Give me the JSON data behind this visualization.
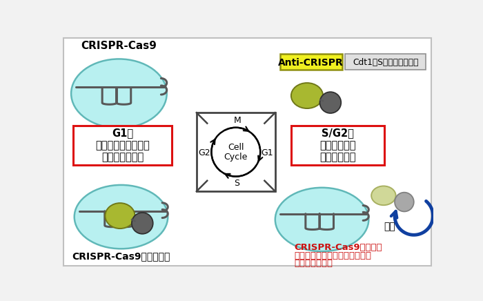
{
  "bg_color": "#f2f2f2",
  "white": "#ffffff",
  "cyan_fill": "#b8f0f0",
  "cyan_edge": "#60b8b8",
  "rna_gray": "#585858",
  "olive_fill": "#a8b830",
  "olive_edge": "#707818",
  "olive_faded_fill": "#d0d898",
  "olive_faded_edge": "#a8b060",
  "cas9_gray_fill": "#606060",
  "cas9_gray_edge": "#303030",
  "cas9_faded_fill": "#a8a8a8",
  "cas9_faded_edge": "#808080",
  "red_border": "#dd1010",
  "red_text": "#cc1010",
  "anti_yellow": "#f0f020",
  "anti_yellow_edge": "#909010",
  "cdt1_bg": "#e0e0e0",
  "cdt1_edge": "#909090",
  "blue_arrow": "#1040a0",
  "black": "#111111",
  "title_tl": "CRISPR-Cas9",
  "label_g1_1": "G1期",
  "label_g1_2": "オフターゲット作用",
  "label_g1_3": "が起こりやすい",
  "label_sg2_1": "S/G2期",
  "label_sg2_2": "相同組換えが",
  "label_sg2_3": "起こりやすい",
  "label_anti": "Anti-CRISPR",
  "label_cdt1": "Cdt1：S期で分解される",
  "label_inhibit": "CRISPR-Cas9活性を阻害",
  "label_act1": "CRISPR-Cas9が活性化",
  "label_act2": "：相同組換えを伴うゲノム編集",
  "label_act3": "が起こりやすい",
  "label_degrade": "分解",
  "cc_M": "M",
  "cc_G1": "G1",
  "cc_S": "S",
  "cc_G2": "G2",
  "cc_c1": "Cell",
  "cc_c2": "Cycle"
}
